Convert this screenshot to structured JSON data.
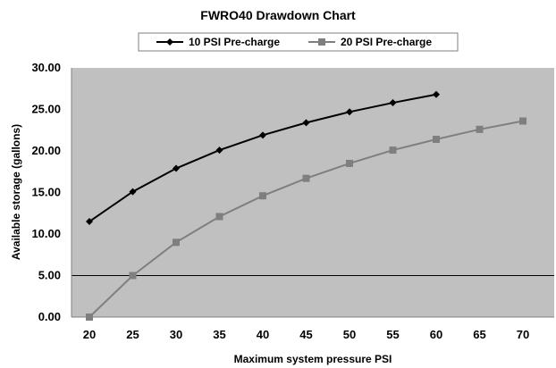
{
  "chart_data": {
    "type": "line",
    "title": "FWRO40 Drawdown Chart",
    "xlabel": "Maximum system pressure PSI",
    "ylabel": "Available storage (gallons)",
    "x": [
      20,
      25,
      30,
      35,
      40,
      45,
      50,
      55,
      60,
      65,
      70
    ],
    "x_tick_labels": [
      "20",
      "25",
      "30",
      "35",
      "40",
      "45",
      "50",
      "55",
      "60",
      "65",
      "70"
    ],
    "y_tick_labels": [
      "0.00",
      "5.00",
      "10.00",
      "15.00",
      "20.00",
      "25.00",
      "30.00"
    ],
    "y_ticks": [
      0,
      5,
      10,
      15,
      20,
      25,
      30
    ],
    "ylim": [
      0,
      30
    ],
    "grid": false,
    "reference_line_y": 5,
    "legend_position": "top",
    "plot_background": "#c0c0c0",
    "series": [
      {
        "name": "10 PSI Pre-charge",
        "marker": "diamond",
        "color": "#000000",
        "x": [
          20,
          25,
          30,
          35,
          40,
          45,
          50,
          55,
          60
        ],
        "values": [
          11.5,
          15.1,
          17.9,
          20.1,
          21.9,
          23.4,
          24.7,
          25.8,
          26.8
        ]
      },
      {
        "name": "20 PSI Pre-charge",
        "marker": "square",
        "color": "#7f7f7f",
        "x": [
          20,
          25,
          30,
          35,
          40,
          45,
          50,
          55,
          60,
          65,
          70
        ],
        "values": [
          0.0,
          5.0,
          9.0,
          12.1,
          14.6,
          16.7,
          18.5,
          20.1,
          21.4,
          22.6,
          23.6
        ]
      }
    ]
  }
}
